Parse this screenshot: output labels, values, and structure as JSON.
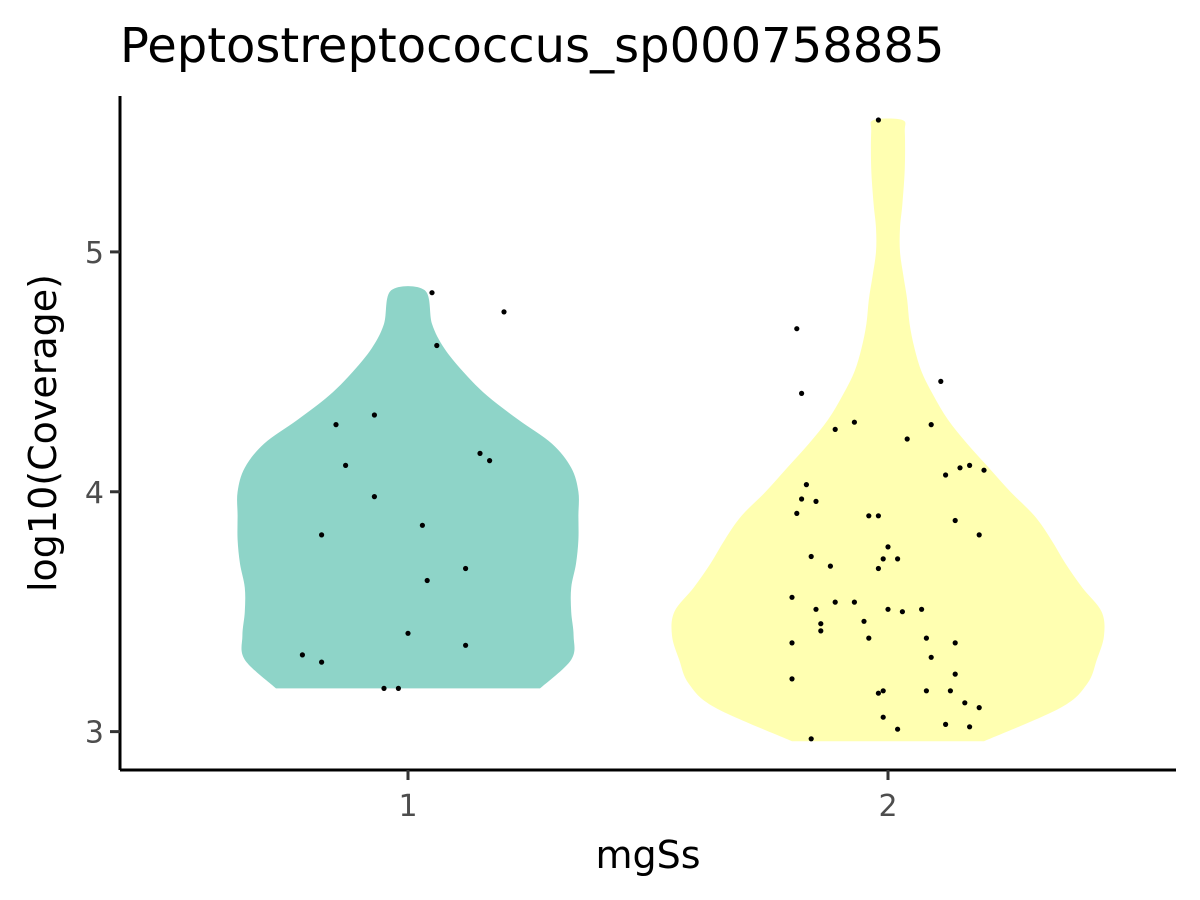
{
  "chart_data": {
    "type": "violin",
    "title": "Peptostreptococcus_sp000758885",
    "xlabel": "mgSs",
    "ylabel": "log10(Coverage)",
    "categories": [
      "1",
      "2"
    ],
    "ylim": [
      2.84,
      5.65
    ],
    "yticks": [
      3,
      4,
      5
    ],
    "grid": false,
    "legend": "none",
    "colors": {
      "1": "#8ED4C8",
      "2": "#FFFFB1"
    },
    "violins": [
      {
        "category": "1",
        "profile": [
          [
            3.18,
            0.275
          ],
          [
            3.3,
            0.34
          ],
          [
            3.4,
            0.345
          ],
          [
            3.5,
            0.34
          ],
          [
            3.6,
            0.34
          ],
          [
            3.7,
            0.35
          ],
          [
            3.8,
            0.355
          ],
          [
            3.9,
            0.355
          ],
          [
            4.0,
            0.355
          ],
          [
            4.1,
            0.34
          ],
          [
            4.2,
            0.3
          ],
          [
            4.3,
            0.23
          ],
          [
            4.4,
            0.165
          ],
          [
            4.5,
            0.115
          ],
          [
            4.6,
            0.075
          ],
          [
            4.7,
            0.05
          ],
          [
            4.84,
            0.035
          ]
        ],
        "points": [
          [
            0.85,
            4.28
          ],
          [
            0.93,
            4.32
          ],
          [
            0.87,
            4.11
          ],
          [
            0.93,
            3.98
          ],
          [
            0.82,
            3.82
          ],
          [
            1.03,
            3.86
          ],
          [
            1.04,
            3.63
          ],
          [
            1.12,
            3.68
          ],
          [
            1.0,
            3.41
          ],
          [
            1.12,
            3.36
          ],
          [
            0.78,
            3.32
          ],
          [
            0.82,
            3.29
          ],
          [
            0.95,
            3.18
          ],
          [
            0.98,
            3.18
          ],
          [
            1.05,
            4.83
          ],
          [
            1.06,
            4.61
          ],
          [
            1.2,
            4.75
          ],
          [
            1.15,
            4.16
          ],
          [
            1.17,
            4.13
          ]
        ]
      },
      {
        "category": "2",
        "profile": [
          [
            2.96,
            0.2
          ],
          [
            3.1,
            0.36
          ],
          [
            3.2,
            0.415
          ],
          [
            3.3,
            0.435
          ],
          [
            3.4,
            0.45
          ],
          [
            3.5,
            0.445
          ],
          [
            3.6,
            0.405
          ],
          [
            3.7,
            0.37
          ],
          [
            3.8,
            0.34
          ],
          [
            3.9,
            0.305
          ],
          [
            4.0,
            0.255
          ],
          [
            4.1,
            0.21
          ],
          [
            4.2,
            0.165
          ],
          [
            4.3,
            0.125
          ],
          [
            4.4,
            0.095
          ],
          [
            4.5,
            0.07
          ],
          [
            4.6,
            0.055
          ],
          [
            4.7,
            0.045
          ],
          [
            4.8,
            0.04
          ],
          [
            4.9,
            0.032
          ],
          [
            5.0,
            0.025
          ],
          [
            5.1,
            0.025
          ],
          [
            5.2,
            0.03
          ],
          [
            5.35,
            0.035
          ],
          [
            5.5,
            0.035
          ],
          [
            5.55,
            0.03
          ]
        ],
        "points": [
          [
            1.98,
            5.55
          ],
          [
            1.81,
            4.68
          ],
          [
            1.82,
            4.41
          ],
          [
            2.11,
            4.46
          ],
          [
            1.93,
            4.29
          ],
          [
            1.89,
            4.26
          ],
          [
            2.04,
            4.22
          ],
          [
            2.09,
            4.28
          ],
          [
            1.83,
            4.03
          ],
          [
            1.81,
            3.91
          ],
          [
            1.82,
            3.97
          ],
          [
            1.85,
            3.96
          ],
          [
            1.96,
            3.9
          ],
          [
            1.98,
            3.9
          ],
          [
            2.12,
            4.07
          ],
          [
            2.15,
            4.1
          ],
          [
            2.17,
            4.11
          ],
          [
            2.2,
            4.09
          ],
          [
            2.14,
            3.88
          ],
          [
            2.19,
            3.82
          ],
          [
            1.84,
            3.73
          ],
          [
            1.88,
            3.69
          ],
          [
            2.0,
            3.77
          ],
          [
            1.99,
            3.72
          ],
          [
            2.02,
            3.72
          ],
          [
            1.98,
            3.68
          ],
          [
            1.8,
            3.56
          ],
          [
            1.85,
            3.51
          ],
          [
            1.89,
            3.54
          ],
          [
            1.93,
            3.54
          ],
          [
            2.0,
            3.51
          ],
          [
            2.03,
            3.5
          ],
          [
            2.07,
            3.51
          ],
          [
            1.86,
            3.45
          ],
          [
            1.86,
            3.42
          ],
          [
            1.95,
            3.46
          ],
          [
            1.96,
            3.39
          ],
          [
            1.8,
            3.37
          ],
          [
            2.08,
            3.39
          ],
          [
            2.09,
            3.31
          ],
          [
            2.14,
            3.37
          ],
          [
            1.8,
            3.22
          ],
          [
            1.98,
            3.16
          ],
          [
            1.99,
            3.17
          ],
          [
            2.08,
            3.17
          ],
          [
            2.13,
            3.17
          ],
          [
            2.14,
            3.24
          ],
          [
            2.16,
            3.12
          ],
          [
            2.19,
            3.1
          ],
          [
            1.99,
            3.06
          ],
          [
            2.02,
            3.01
          ],
          [
            2.12,
            3.03
          ],
          [
            2.17,
            3.02
          ],
          [
            1.84,
            2.97
          ]
        ]
      }
    ]
  }
}
